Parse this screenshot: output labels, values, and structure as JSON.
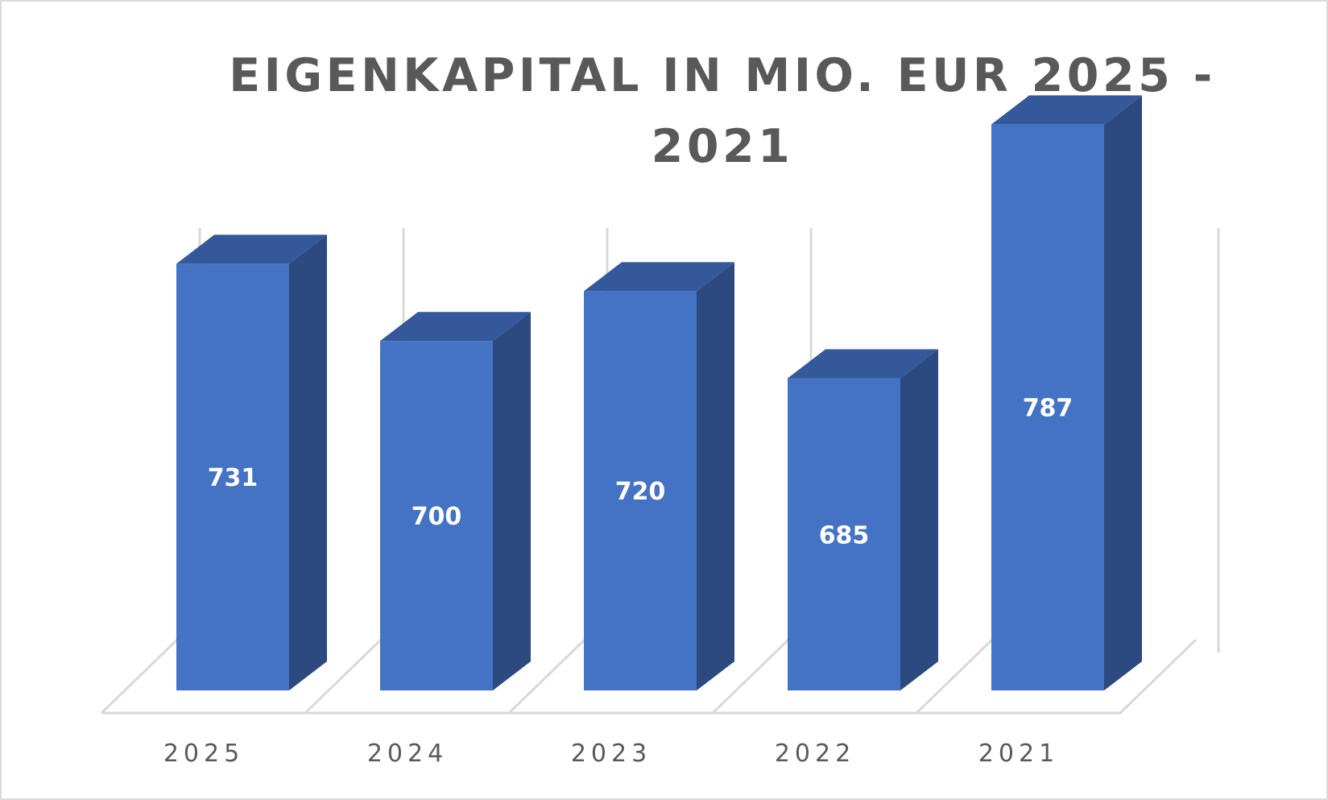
{
  "chart_data": {
    "type": "bar",
    "title": "EIGENKAPITAL IN MIO. EUR 2025 - 2021",
    "categories": [
      "2025",
      "2024",
      "2023",
      "2022",
      "2021"
    ],
    "values": [
      731,
      700,
      720,
      685,
      787
    ],
    "xlabel": "",
    "ylabel": "",
    "grid": true,
    "data_labels": true,
    "style": "3d-column",
    "colors": {
      "bar_front": "#4472c4",
      "bar_side": "#2c4a80",
      "bar_top": "#34589a",
      "grid": "#d9d9d9",
      "label": "#ffffff",
      "text": "#595959"
    }
  }
}
